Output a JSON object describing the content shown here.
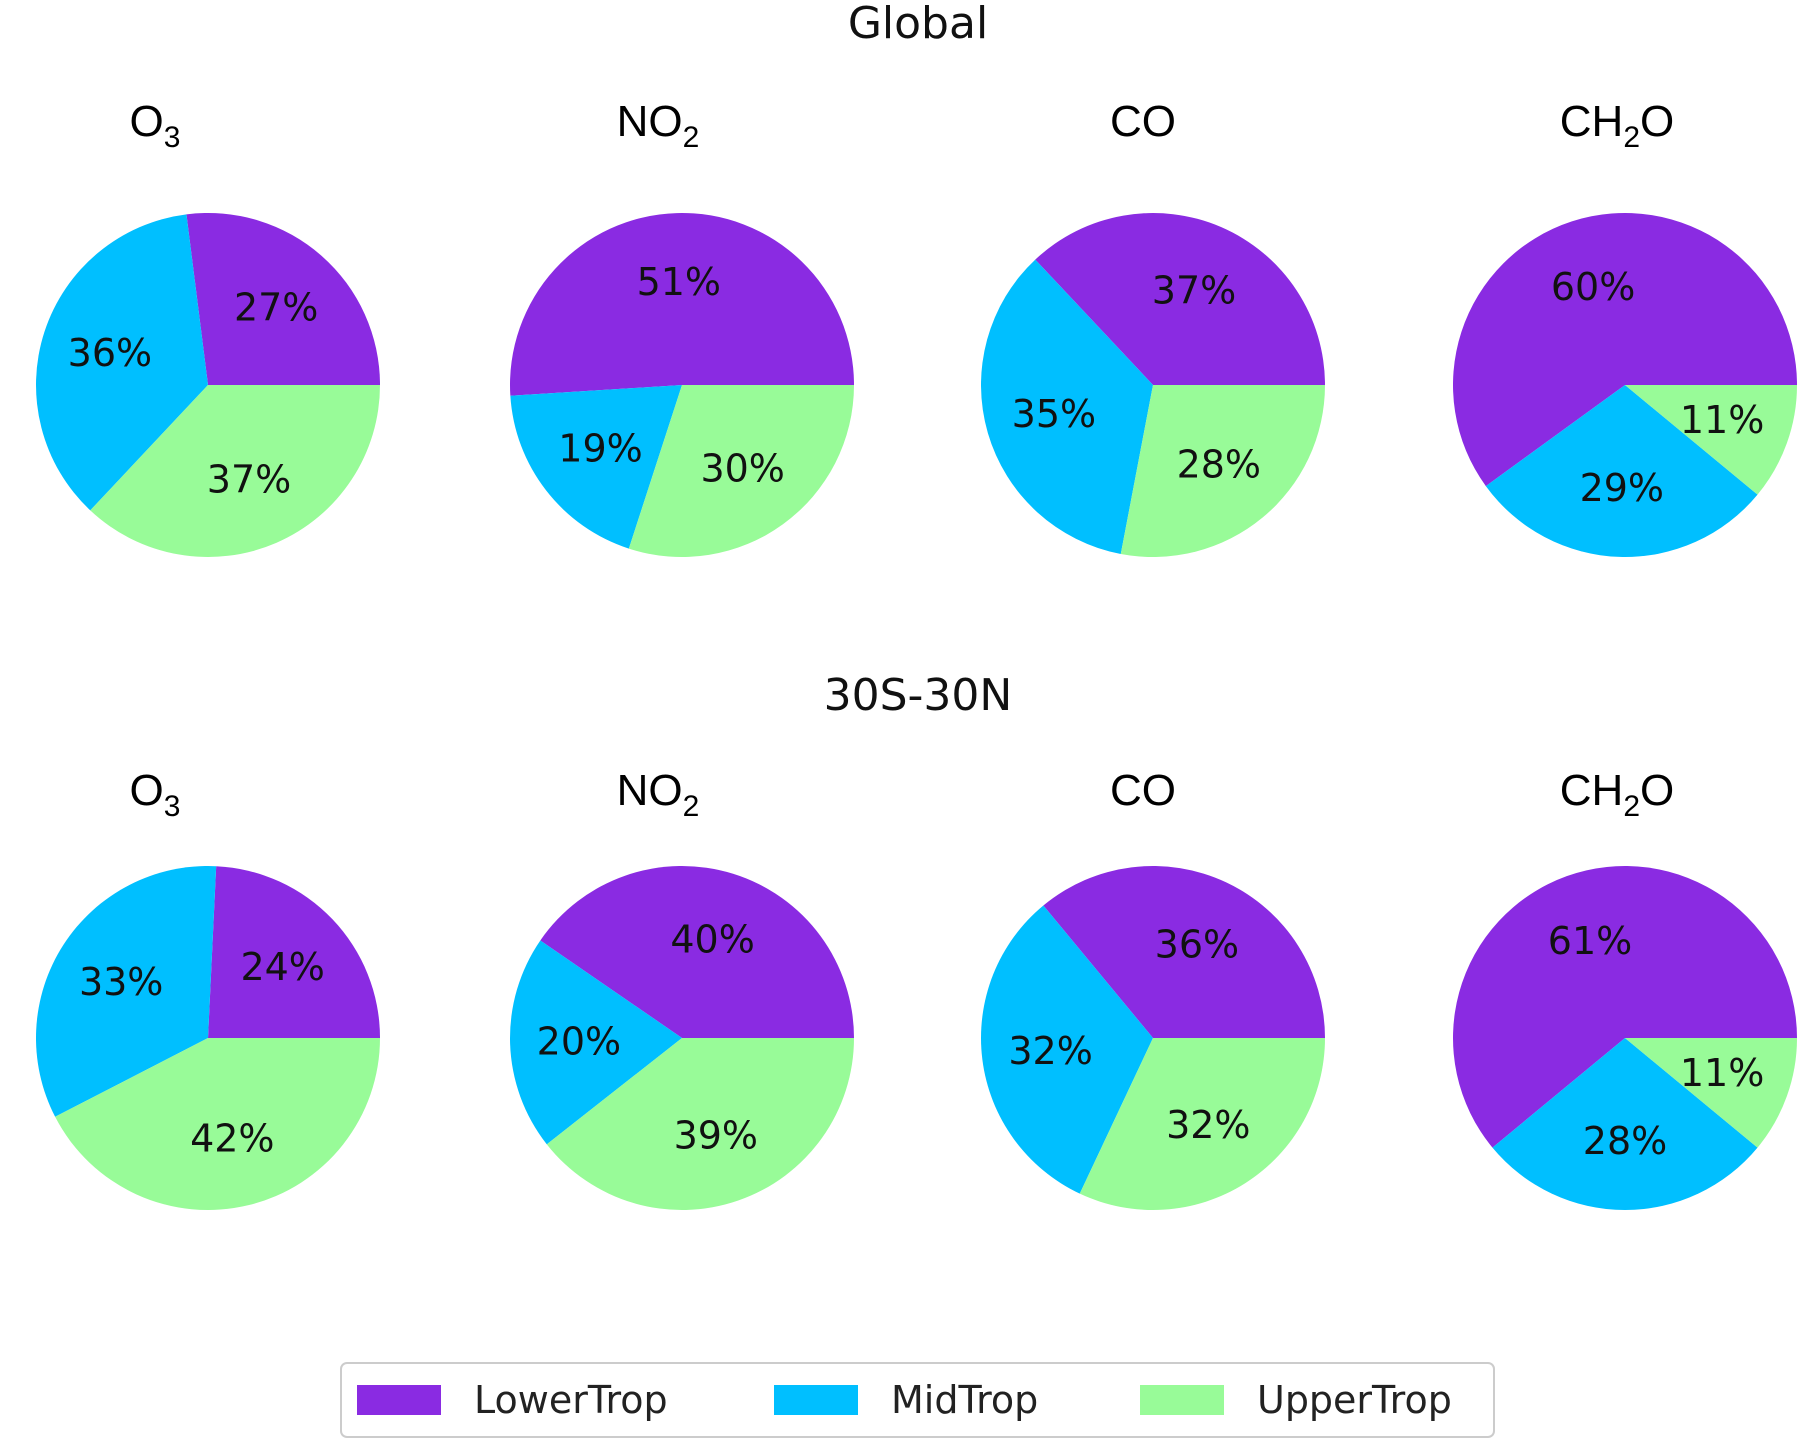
{
  "chart_data": {
    "type": "pie",
    "legend": {
      "placement": "bottom-center",
      "entries": [
        {
          "name": "LowerTrop",
          "color": "#8a2be2"
        },
        {
          "name": "MidTrop",
          "color": "#00bfff"
        },
        {
          "name": "UpperTrop",
          "color": "#98fb98"
        }
      ]
    },
    "groups": [
      {
        "title": "Global",
        "pies": [
          {
            "title": "O3",
            "base": "O",
            "subscript": "3",
            "values": [
              27,
              36,
              37
            ],
            "labels": [
              "27%",
              "36%",
              "37%"
            ]
          },
          {
            "title": "NO2",
            "base": "NO",
            "subscript": "2",
            "values": [
              51,
              19,
              30
            ],
            "labels": [
              "51%",
              "19%",
              "30%"
            ]
          },
          {
            "title": "CO",
            "base": "CO",
            "subscript": "",
            "values": [
              37,
              35,
              28
            ],
            "labels": [
              "37%",
              "35%",
              "28%"
            ]
          },
          {
            "title": "CH2O",
            "base": "CH",
            "subscript": "2",
            "suffix": "O",
            "values": [
              60,
              29,
              11
            ],
            "labels": [
              "60%",
              "29%",
              "11%"
            ]
          }
        ]
      },
      {
        "title": "30S-30N",
        "pies": [
          {
            "title": "O3",
            "base": "O",
            "subscript": "3",
            "values": [
              24,
              33,
              42
            ],
            "labels": [
              "24%",
              "33%",
              "42%"
            ]
          },
          {
            "title": "NO2",
            "base": "NO",
            "subscript": "2",
            "values": [
              40,
              20,
              39
            ],
            "labels": [
              "40%",
              "20%",
              "39%"
            ]
          },
          {
            "title": "CO",
            "base": "CO",
            "subscript": "",
            "values": [
              36,
              32,
              32
            ],
            "labels": [
              "36%",
              "32%",
              "32%"
            ]
          },
          {
            "title": "CH2O",
            "base": "CH",
            "subscript": "2",
            "suffix": "O",
            "values": [
              61,
              28,
              11
            ],
            "labels": [
              "61%",
              "28%",
              "11%"
            ]
          }
        ]
      }
    ]
  }
}
